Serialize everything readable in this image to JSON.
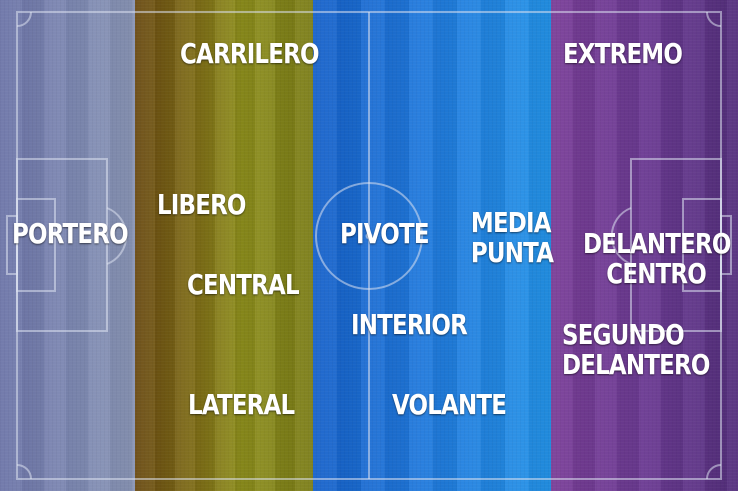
{
  "zones": {
    "goalkeeper_color": "#7d88b2",
    "defense_color": "#8d8e1c",
    "midfield_color": "#1f78dc",
    "attack_color": "#6b3a93"
  },
  "positions": {
    "portero": "PORTERO",
    "carrilero": "CARRILERO",
    "libero": "LIBERO",
    "central": "CENTRAL",
    "lateral": "LATERAL",
    "pivote": "PIVOTE",
    "interior": "INTERIOR",
    "volante": "VOLANTE",
    "media_punta": [
      "MEDIA",
      "PUNTA"
    ],
    "extremo": "EXTREMO",
    "delantero_centro": [
      "DELANTERO",
      "CENTRO"
    ],
    "segundo_delantero": [
      "SEGUNDO",
      "DELANTERO"
    ]
  }
}
